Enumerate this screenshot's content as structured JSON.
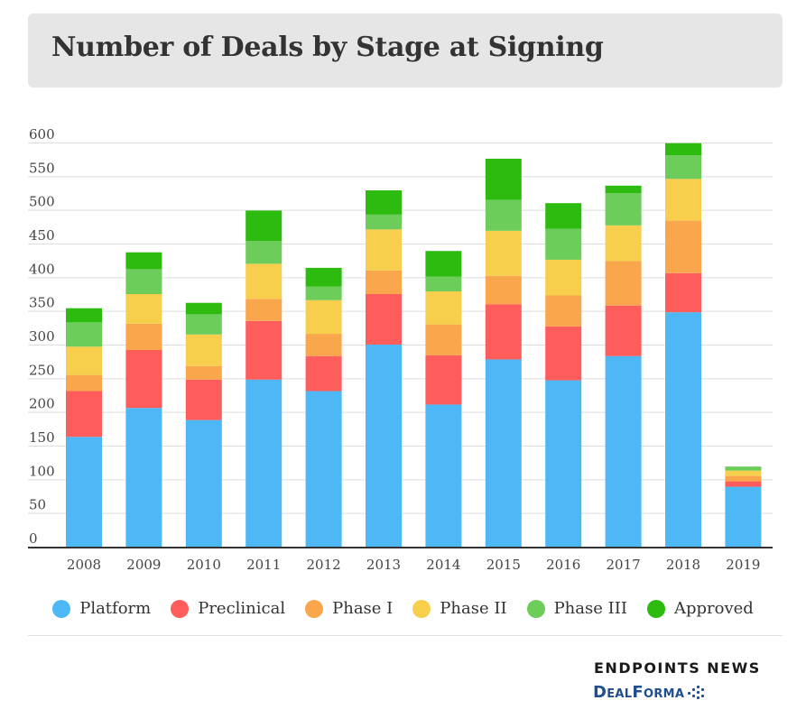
{
  "header": {
    "title": "Number of Deals by Stage at Signing"
  },
  "chart_data": {
    "type": "bar",
    "stacked": true,
    "title": "Number of Deals by Stage at Signing",
    "xlabel": "",
    "ylabel": "",
    "ylim": [
      0,
      600
    ],
    "yticks": [
      0,
      50,
      100,
      150,
      200,
      250,
      300,
      350,
      400,
      450,
      500,
      550,
      600
    ],
    "grid": true,
    "legend_position": "bottom",
    "categories": [
      "2008",
      "2009",
      "2010",
      "2011",
      "2012",
      "2013",
      "2014",
      "2015",
      "2016",
      "2017",
      "2018",
      "2019"
    ],
    "series": [
      {
        "name": "Platform",
        "color": "#4db8f5",
        "values": [
          163,
          206,
          188,
          248,
          231,
          300,
          211,
          278,
          247,
          283,
          348,
          89
        ]
      },
      {
        "name": "Preclinical",
        "color": "#ff5c5c",
        "values": [
          68,
          86,
          60,
          87,
          52,
          75,
          73,
          82,
          80,
          75,
          58,
          8
        ]
      },
      {
        "name": "Phase I",
        "color": "#f9a64d",
        "values": [
          24,
          39,
          20,
          33,
          33,
          35,
          46,
          42,
          46,
          66,
          78,
          8
        ]
      },
      {
        "name": "Phase II",
        "color": "#f7cf4d",
        "values": [
          42,
          44,
          47,
          52,
          50,
          61,
          49,
          67,
          53,
          53,
          62,
          8
        ]
      },
      {
        "name": "Phase III",
        "color": "#6ccd5a",
        "values": [
          36,
          37,
          30,
          34,
          20,
          22,
          22,
          46,
          46,
          48,
          35,
          6
        ]
      },
      {
        "name": "Approved",
        "color": "#2dbb0f",
        "values": [
          21,
          25,
          17,
          45,
          28,
          36,
          38,
          61,
          38,
          11,
          18,
          0
        ]
      }
    ]
  },
  "branding": {
    "line1": "ENDPOINTS NEWS",
    "line2": "DealForma"
  }
}
